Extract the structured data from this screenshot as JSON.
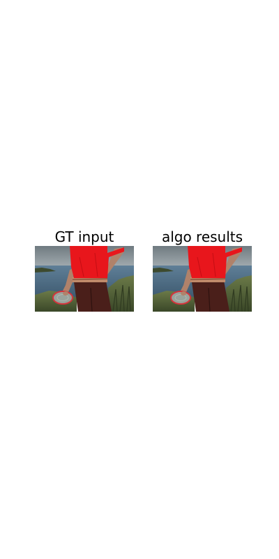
{
  "panels": [
    {
      "title": "GT input",
      "image": "photo-person-red-shirt-holding-frisbee-coastline-segmentation-overlay"
    },
    {
      "title": "algo results",
      "image": "photo-person-red-shirt-holding-frisbee-coastline-segmentation-overlay"
    }
  ],
  "colors": {
    "sky": "#8c969c",
    "sea": "#4d6a82",
    "grass": "#4b5a34",
    "mask_red": "#e8161c",
    "trousers": "#4a1f1a",
    "skin": "#b0826a",
    "frisbee": "#9aa39c",
    "frisbee_outline": "#d4343c",
    "background": "#ffffff"
  }
}
